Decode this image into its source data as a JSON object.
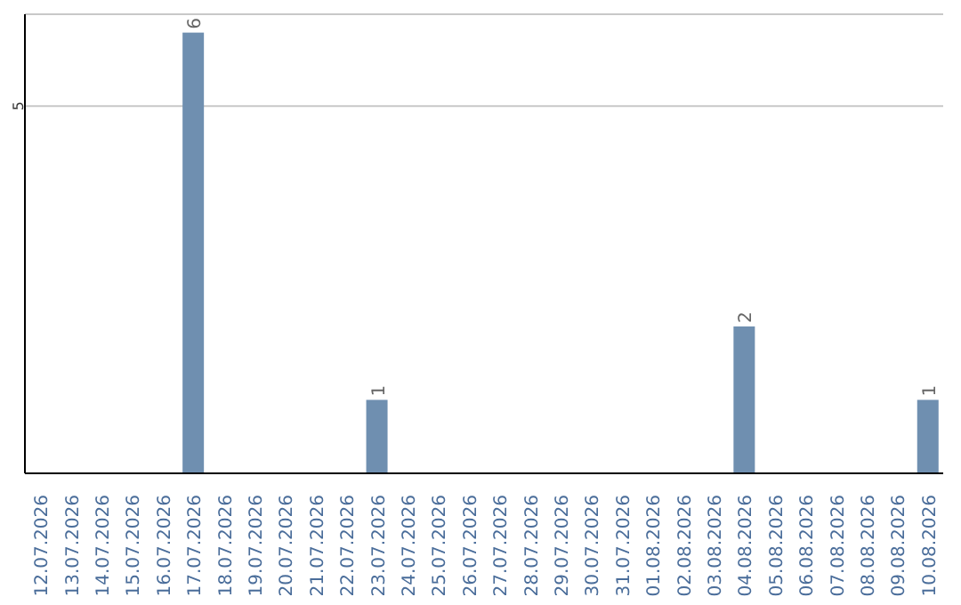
{
  "chart_data": {
    "type": "bar",
    "categories": [
      "12.07.2026",
      "13.07.2026",
      "14.07.2026",
      "15.07.2026",
      "16.07.2026",
      "17.07.2026",
      "18.07.2026",
      "19.07.2026",
      "20.07.2026",
      "21.07.2026",
      "22.07.2026",
      "23.07.2026",
      "24.07.2026",
      "25.07.2026",
      "26.07.2026",
      "27.07.2026",
      "28.07.2026",
      "29.07.2026",
      "30.07.2026",
      "31.07.2026",
      "01.08.2026",
      "02.08.2026",
      "03.08.2026",
      "04.08.2026",
      "05.08.2026",
      "06.08.2026",
      "07.08.2026",
      "08.08.2026",
      "09.08.2026",
      "10.08.2026"
    ],
    "values": [
      0,
      0,
      0,
      0,
      0,
      6,
      0,
      0,
      0,
      0,
      0,
      1,
      0,
      0,
      0,
      0,
      0,
      0,
      0,
      0,
      0,
      0,
      0,
      2,
      0,
      0,
      0,
      0,
      0,
      1
    ],
    "value_labels": [
      null,
      null,
      null,
      null,
      null,
      "6",
      null,
      null,
      null,
      null,
      null,
      "1",
      null,
      null,
      null,
      null,
      null,
      null,
      null,
      null,
      null,
      null,
      null,
      "2",
      null,
      null,
      null,
      null,
      null,
      "1"
    ],
    "color": "#6f8fb0",
    "ylim": [
      0,
      6.25
    ],
    "yticks": [
      5
    ],
    "grid": "y"
  }
}
